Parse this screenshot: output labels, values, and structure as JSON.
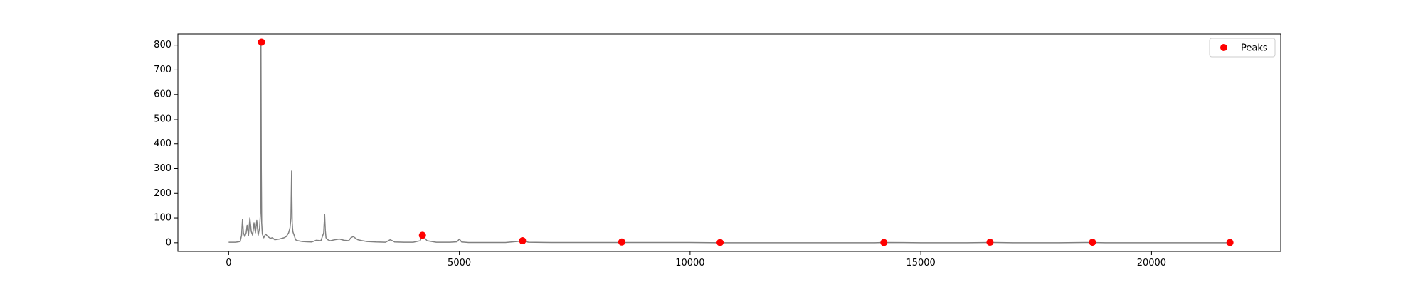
{
  "chart_data": {
    "type": "line",
    "title": "",
    "xlabel": "",
    "ylabel": "",
    "xlim": [
      -1100,
      22800
    ],
    "ylim": [
      -35,
      845
    ],
    "x_ticks": [
      0,
      5000,
      10000,
      15000,
      20000
    ],
    "x_tick_labels": [
      "0",
      "5000",
      "10000",
      "15000",
      "20000"
    ],
    "y_ticks": [
      0,
      100,
      200,
      300,
      400,
      500,
      600,
      700,
      800
    ],
    "y_tick_labels": [
      "0",
      "100",
      "200",
      "300",
      "400",
      "500",
      "600",
      "700",
      "800"
    ],
    "grid": false,
    "legend": {
      "placement": "top-right",
      "entries": [
        "Peaks"
      ]
    },
    "series": [
      {
        "style": "line",
        "color": "#808080",
        "x": [
          0,
          150,
          250,
          280,
          300,
          320,
          350,
          380,
          400,
          430,
          460,
          490,
          520,
          550,
          580,
          610,
          640,
          670,
          690,
          700,
          708,
          716,
          730,
          760,
          800,
          850,
          900,
          950,
          1000,
          1100,
          1200,
          1250,
          1300,
          1330,
          1350,
          1365,
          1378,
          1385,
          1392,
          1400,
          1420,
          1450,
          1500,
          1600,
          1700,
          1800,
          1900,
          2000,
          2060,
          2080,
          2095,
          2110,
          2150,
          2200,
          2300,
          2400,
          2500,
          2600,
          2650,
          2700,
          2750,
          2800,
          2900,
          3000,
          3200,
          3400,
          3500,
          3550,
          3600,
          3800,
          4000,
          4150,
          4200,
          4300,
          4500,
          4800,
          4950,
          5000,
          5050,
          5200,
          5500,
          6000,
          6370,
          6500,
          7000,
          8000,
          8500,
          9000,
          10000,
          10650,
          11000,
          12000,
          13000,
          14000,
          14200,
          15000,
          16000,
          16500,
          17000,
          18000,
          18700,
          19000,
          20000,
          21000,
          21700
        ],
        "y": [
          2,
          2,
          5,
          30,
          95,
          40,
          25,
          40,
          70,
          30,
          100,
          45,
          30,
          80,
          40,
          90,
          30,
          60,
          120,
          810,
          300,
          80,
          35,
          20,
          35,
          25,
          18,
          20,
          12,
          15,
          20,
          25,
          40,
          60,
          100,
          290,
          80,
          60,
          45,
          40,
          30,
          12,
          8,
          5,
          4,
          3,
          10,
          8,
          40,
          115,
          50,
          20,
          12,
          8,
          12,
          15,
          10,
          8,
          20,
          25,
          18,
          12,
          8,
          5,
          3,
          2,
          12,
          8,
          3,
          2,
          2,
          8,
          30,
          8,
          2,
          2,
          4,
          15,
          3,
          1,
          1,
          1,
          7,
          2,
          1,
          1,
          1,
          1,
          1,
          0,
          0,
          0,
          0,
          0,
          1,
          0,
          0,
          1,
          0,
          0,
          1,
          0,
          0,
          0,
          0
        ]
      },
      {
        "name": "Peaks",
        "style": "scatter",
        "color": "#ff0000",
        "x": [
          712,
          4200,
          6370,
          8520,
          10650,
          14200,
          16500,
          18720,
          21700
        ],
        "y": [
          812,
          30,
          8,
          3,
          1,
          1,
          2,
          2,
          1
        ]
      }
    ]
  }
}
